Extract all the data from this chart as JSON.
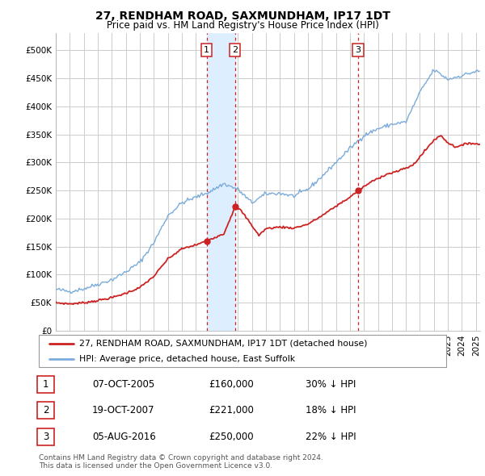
{
  "title": "27, RENDHAM ROAD, SAXMUNDHAM, IP17 1DT",
  "subtitle": "Price paid vs. HM Land Registry's House Price Index (HPI)",
  "ytick_values": [
    0,
    50000,
    100000,
    150000,
    200000,
    250000,
    300000,
    350000,
    400000,
    450000,
    500000
  ],
  "ylim": [
    0,
    530000
  ],
  "xlim_start": 1995.0,
  "xlim_end": 2025.3,
  "sale_dates": [
    2005.77,
    2007.8,
    2016.59
  ],
  "sale_prices": [
    160000,
    221000,
    250000
  ],
  "sale_labels": [
    "1",
    "2",
    "3"
  ],
  "legend_line1": "27, RENDHAM ROAD, SAXMUNDHAM, IP17 1DT (detached house)",
  "legend_line2": "HPI: Average price, detached house, East Suffolk",
  "table_rows": [
    [
      "1",
      "07-OCT-2005",
      "£160,000",
      "30% ↓ HPI"
    ],
    [
      "2",
      "19-OCT-2007",
      "£221,000",
      "18% ↓ HPI"
    ],
    [
      "3",
      "05-AUG-2016",
      "£250,000",
      "22% ↓ HPI"
    ]
  ],
  "footnote": "Contains HM Land Registry data © Crown copyright and database right 2024.\nThis data is licensed under the Open Government Licence v3.0.",
  "red_color": "#cc2222",
  "blue_color": "#7aabdb",
  "shade_color": "#ddeeff",
  "dashed_color": "#cc2222",
  "background_color": "#ffffff",
  "grid_color": "#cccccc"
}
